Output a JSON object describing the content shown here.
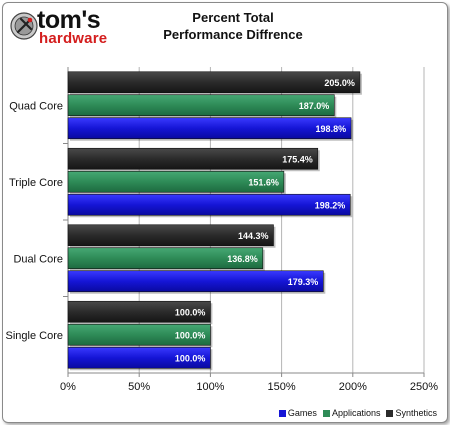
{
  "logo": {
    "line1": "tom's",
    "line2": "hardware"
  },
  "title_line1": "Percent Total",
  "title_line2": "Performance Diffrence",
  "chart_data": {
    "type": "bar",
    "orientation": "horizontal",
    "title": "Percent Total Performance Diffrence",
    "categories": [
      "Quad Core",
      "Triple Core",
      "Dual Core",
      "Single Core"
    ],
    "series": [
      {
        "name": "Synthetics",
        "color": "#2b2b2b",
        "values": [
          205.0,
          175.4,
          144.3,
          100.0
        ],
        "labels": [
          "205.0%",
          "175.4%",
          "144.3%",
          "100.0%"
        ]
      },
      {
        "name": "Applications",
        "color": "#2e8b57",
        "values": [
          187.0,
          151.6,
          136.8,
          100.0
        ],
        "labels": [
          "187.0%",
          "151.6%",
          "136.8%",
          "100.0%"
        ]
      },
      {
        "name": "Games",
        "color": "#1515d6",
        "values": [
          198.8,
          198.2,
          179.3,
          100.0
        ],
        "labels": [
          "198.8%",
          "198.2%",
          "179.3%",
          "100.0%"
        ]
      }
    ],
    "xlim": [
      0,
      250
    ],
    "xticks": [
      0,
      50,
      100,
      150,
      200,
      250
    ],
    "xtick_labels": [
      "0%",
      "50%",
      "100%",
      "150%",
      "200%",
      "250%"
    ],
    "grid": "vertical",
    "legend_placement": "bottom-right",
    "legend_order": [
      "Games",
      "Applications",
      "Synthetics"
    ]
  }
}
